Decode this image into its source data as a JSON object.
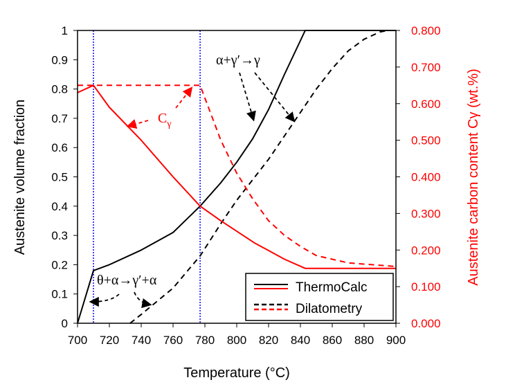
{
  "chart_data": {
    "type": "line",
    "xlabel": "Temperature (°C)",
    "ylabel": "Austenite volume fraction",
    "y2label": "Austenite carbon content Cγ (wt.%)",
    "xlim": [
      700,
      900
    ],
    "ylim": [
      0,
      1
    ],
    "y2lim": [
      0,
      0.8
    ],
    "xticks": [
      "700",
      "720",
      "740",
      "760",
      "780",
      "800",
      "820",
      "840",
      "860",
      "880",
      "900"
    ],
    "yticks": [
      "0",
      "0.1",
      "0.2",
      "0.3",
      "0.4",
      "0.5",
      "0.6",
      "0.7",
      "0.8",
      "0.9",
      "1"
    ],
    "y2ticks": [
      "0.000",
      "0.100",
      "0.200",
      "0.300",
      "0.400",
      "0.500",
      "0.600",
      "0.700",
      "0.800"
    ],
    "series": [
      {
        "name": "ThermoCalc fraction",
        "axis": "left",
        "color": "#000000",
        "dash": false,
        "points": [
          [
            700,
            0
          ],
          [
            710,
            0.18
          ],
          [
            720,
            0.2
          ],
          [
            740,
            0.25
          ],
          [
            760,
            0.31
          ],
          [
            777,
            0.4
          ],
          [
            790,
            0.48
          ],
          [
            800,
            0.55
          ],
          [
            810,
            0.63
          ],
          [
            820,
            0.73
          ],
          [
            830,
            0.85
          ],
          [
            843,
            1
          ],
          [
            900,
            1
          ]
        ]
      },
      {
        "name": "Dilatometry fraction",
        "axis": "left",
        "color": "#000000",
        "dash": true,
        "points": [
          [
            733,
            0
          ],
          [
            740,
            0.03
          ],
          [
            760,
            0.12
          ],
          [
            777,
            0.23
          ],
          [
            790,
            0.34
          ],
          [
            800,
            0.42
          ],
          [
            810,
            0.49
          ],
          [
            820,
            0.56
          ],
          [
            830,
            0.64
          ],
          [
            840,
            0.72
          ],
          [
            850,
            0.8
          ],
          [
            860,
            0.87
          ],
          [
            870,
            0.93
          ],
          [
            880,
            0.97
          ],
          [
            890,
            0.995
          ],
          [
            895,
            1
          ],
          [
            900,
            1
          ]
        ]
      },
      {
        "name": "ThermoCalc Cγ",
        "axis": "right",
        "color": "#ff0000",
        "dash": false,
        "points": [
          [
            700,
            0.63
          ],
          [
            710,
            0.65
          ],
          [
            720,
            0.59
          ],
          [
            740,
            0.5
          ],
          [
            760,
            0.4
          ],
          [
            777,
            0.32
          ],
          [
            790,
            0.28
          ],
          [
            811,
            0.22
          ],
          [
            830,
            0.175
          ],
          [
            843,
            0.15
          ],
          [
            900,
            0.15
          ]
        ]
      },
      {
        "name": "Dilatometry Cγ",
        "axis": "right",
        "color": "#ff0000",
        "dash": true,
        "points": [
          [
            700,
            0.65
          ],
          [
            777,
            0.65
          ],
          [
            790,
            0.5
          ],
          [
            800,
            0.41
          ],
          [
            810,
            0.34
          ],
          [
            820,
            0.28
          ],
          [
            830,
            0.24
          ],
          [
            840,
            0.21
          ],
          [
            850,
            0.185
          ],
          [
            870,
            0.165
          ],
          [
            900,
            0.155
          ]
        ]
      }
    ],
    "vlines": [
      710,
      777
    ],
    "legend": {
      "placement": "bottom-right",
      "entries": [
        "ThermoCalc",
        "Dilatometry"
      ]
    },
    "annotations": {
      "top": "α+γ′→γ",
      "bottom": "θ+α→γ′+α",
      "c": "C",
      "c_sub": "γ"
    }
  }
}
